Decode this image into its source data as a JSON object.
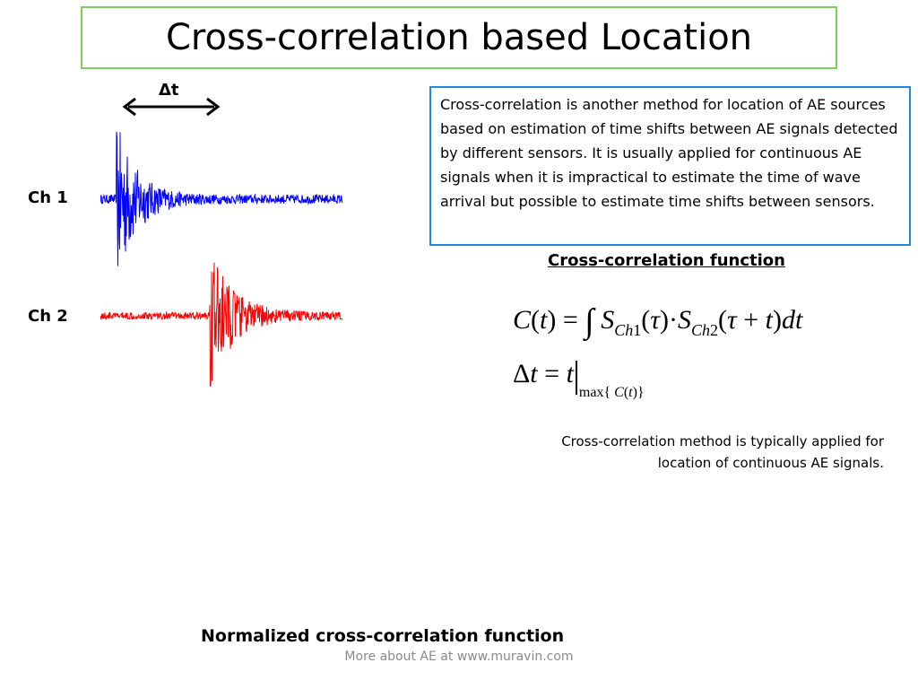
{
  "slide": {
    "title": "Cross-correlation based Location",
    "delta_label": "Δt",
    "channels": [
      {
        "label": "Ch 1",
        "color": "#0000ff"
      },
      {
        "label": "Ch 2",
        "color": "#ff0000"
      }
    ],
    "description": "Cross-correlation is another method for location of AE sources based on estimation of time shifts between AE signals detected by different sensors. It is usually applied for continuous AE signals when it is impractical to estimate the time of wave arrival but possible to estimate time shifts between sensors.",
    "cc_heading": "Cross-correlation function",
    "note": "Cross-correlation method is typically applied for location of continuous AE signals.",
    "bottom_heading": "Normalized cross-correlation function",
    "footer": "More about AE at www.muravin.com",
    "colors": {
      "title_border": "#7ccf5a",
      "box_border": "#1f8ad8",
      "footer_text": "#8a8a8a"
    }
  }
}
